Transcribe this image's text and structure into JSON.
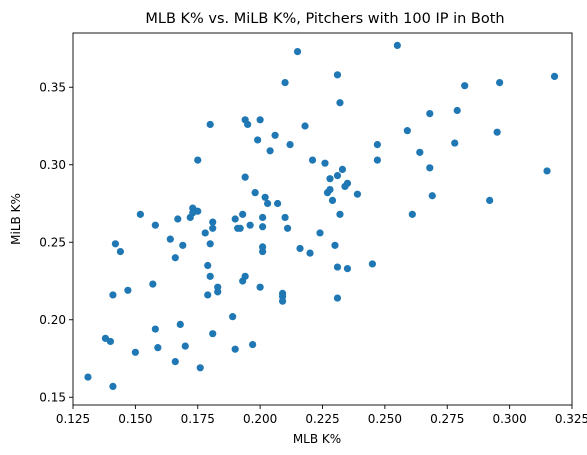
{
  "chart_data": {
    "type": "scatter",
    "title": "MLB K% vs. MiLB K%, Pitchers with 100 IP in Both",
    "xlabel": "MLB K%",
    "ylabel": "MiLB K%",
    "xlim": [
      0.125,
      0.325
    ],
    "ylim": [
      0.145,
      0.385
    ],
    "x_ticks": [
      "0.125",
      "0.150",
      "0.175",
      "0.200",
      "0.225",
      "0.250",
      "0.275",
      "0.300",
      "0.325"
    ],
    "y_ticks": [
      "0.15",
      "0.20",
      "0.25",
      "0.30",
      "0.35"
    ],
    "grid": false,
    "marker_color": "#1f77b4",
    "points": [
      {
        "x": 0.131,
        "y": 0.163
      },
      {
        "x": 0.138,
        "y": 0.188
      },
      {
        "x": 0.141,
        "y": 0.157
      },
      {
        "x": 0.14,
        "y": 0.186
      },
      {
        "x": 0.141,
        "y": 0.216
      },
      {
        "x": 0.142,
        "y": 0.249
      },
      {
        "x": 0.144,
        "y": 0.244
      },
      {
        "x": 0.147,
        "y": 0.219
      },
      {
        "x": 0.15,
        "y": 0.179
      },
      {
        "x": 0.152,
        "y": 0.268
      },
      {
        "x": 0.157,
        "y": 0.223
      },
      {
        "x": 0.158,
        "y": 0.261
      },
      {
        "x": 0.158,
        "y": 0.194
      },
      {
        "x": 0.159,
        "y": 0.182
      },
      {
        "x": 0.164,
        "y": 0.252
      },
      {
        "x": 0.166,
        "y": 0.173
      },
      {
        "x": 0.166,
        "y": 0.24
      },
      {
        "x": 0.167,
        "y": 0.265
      },
      {
        "x": 0.168,
        "y": 0.197
      },
      {
        "x": 0.169,
        "y": 0.248
      },
      {
        "x": 0.17,
        "y": 0.183
      },
      {
        "x": 0.172,
        "y": 0.266
      },
      {
        "x": 0.173,
        "y": 0.272
      },
      {
        "x": 0.173,
        "y": 0.269
      },
      {
        "x": 0.175,
        "y": 0.303
      },
      {
        "x": 0.175,
        "y": 0.27
      },
      {
        "x": 0.176,
        "y": 0.169
      },
      {
        "x": 0.178,
        "y": 0.256
      },
      {
        "x": 0.179,
        "y": 0.216
      },
      {
        "x": 0.179,
        "y": 0.235
      },
      {
        "x": 0.18,
        "y": 0.326
      },
      {
        "x": 0.18,
        "y": 0.228
      },
      {
        "x": 0.18,
        "y": 0.249
      },
      {
        "x": 0.181,
        "y": 0.259
      },
      {
        "x": 0.181,
        "y": 0.263
      },
      {
        "x": 0.181,
        "y": 0.191
      },
      {
        "x": 0.183,
        "y": 0.218
      },
      {
        "x": 0.183,
        "y": 0.221
      },
      {
        "x": 0.189,
        "y": 0.202
      },
      {
        "x": 0.19,
        "y": 0.265
      },
      {
        "x": 0.19,
        "y": 0.181
      },
      {
        "x": 0.191,
        "y": 0.259
      },
      {
        "x": 0.192,
        "y": 0.259
      },
      {
        "x": 0.193,
        "y": 0.268
      },
      {
        "x": 0.193,
        "y": 0.225
      },
      {
        "x": 0.194,
        "y": 0.292
      },
      {
        "x": 0.194,
        "y": 0.329
      },
      {
        "x": 0.194,
        "y": 0.228
      },
      {
        "x": 0.195,
        "y": 0.326
      },
      {
        "x": 0.196,
        "y": 0.261
      },
      {
        "x": 0.197,
        "y": 0.184
      },
      {
        "x": 0.198,
        "y": 0.282
      },
      {
        "x": 0.199,
        "y": 0.316
      },
      {
        "x": 0.2,
        "y": 0.329
      },
      {
        "x": 0.2,
        "y": 0.221
      },
      {
        "x": 0.201,
        "y": 0.266
      },
      {
        "x": 0.201,
        "y": 0.26
      },
      {
        "x": 0.201,
        "y": 0.247
      },
      {
        "x": 0.201,
        "y": 0.244
      },
      {
        "x": 0.202,
        "y": 0.279
      },
      {
        "x": 0.203,
        "y": 0.275
      },
      {
        "x": 0.204,
        "y": 0.309
      },
      {
        "x": 0.206,
        "y": 0.319
      },
      {
        "x": 0.207,
        "y": 0.275
      },
      {
        "x": 0.209,
        "y": 0.217
      },
      {
        "x": 0.209,
        "y": 0.215
      },
      {
        "x": 0.209,
        "y": 0.212
      },
      {
        "x": 0.21,
        "y": 0.353
      },
      {
        "x": 0.21,
        "y": 0.266
      },
      {
        "x": 0.211,
        "y": 0.259
      },
      {
        "x": 0.212,
        "y": 0.313
      },
      {
        "x": 0.215,
        "y": 0.373
      },
      {
        "x": 0.216,
        "y": 0.246
      },
      {
        "x": 0.218,
        "y": 0.325
      },
      {
        "x": 0.22,
        "y": 0.243
      },
      {
        "x": 0.221,
        "y": 0.303
      },
      {
        "x": 0.224,
        "y": 0.256
      },
      {
        "x": 0.226,
        "y": 0.301
      },
      {
        "x": 0.227,
        "y": 0.282
      },
      {
        "x": 0.228,
        "y": 0.291
      },
      {
        "x": 0.228,
        "y": 0.284
      },
      {
        "x": 0.229,
        "y": 0.277
      },
      {
        "x": 0.23,
        "y": 0.248
      },
      {
        "x": 0.231,
        "y": 0.358
      },
      {
        "x": 0.231,
        "y": 0.293
      },
      {
        "x": 0.231,
        "y": 0.234
      },
      {
        "x": 0.231,
        "y": 0.214
      },
      {
        "x": 0.232,
        "y": 0.34
      },
      {
        "x": 0.232,
        "y": 0.268
      },
      {
        "x": 0.233,
        "y": 0.297
      },
      {
        "x": 0.234,
        "y": 0.286
      },
      {
        "x": 0.235,
        "y": 0.288
      },
      {
        "x": 0.235,
        "y": 0.233
      },
      {
        "x": 0.239,
        "y": 0.281
      },
      {
        "x": 0.245,
        "y": 0.236
      },
      {
        "x": 0.247,
        "y": 0.313
      },
      {
        "x": 0.247,
        "y": 0.303
      },
      {
        "x": 0.255,
        "y": 0.377
      },
      {
        "x": 0.259,
        "y": 0.322
      },
      {
        "x": 0.261,
        "y": 0.268
      },
      {
        "x": 0.264,
        "y": 0.308
      },
      {
        "x": 0.268,
        "y": 0.333
      },
      {
        "x": 0.268,
        "y": 0.298
      },
      {
        "x": 0.269,
        "y": 0.28
      },
      {
        "x": 0.278,
        "y": 0.314
      },
      {
        "x": 0.279,
        "y": 0.335
      },
      {
        "x": 0.282,
        "y": 0.351
      },
      {
        "x": 0.292,
        "y": 0.277
      },
      {
        "x": 0.295,
        "y": 0.321
      },
      {
        "x": 0.296,
        "y": 0.353
      },
      {
        "x": 0.315,
        "y": 0.296
      },
      {
        "x": 0.318,
        "y": 0.357
      }
    ]
  }
}
